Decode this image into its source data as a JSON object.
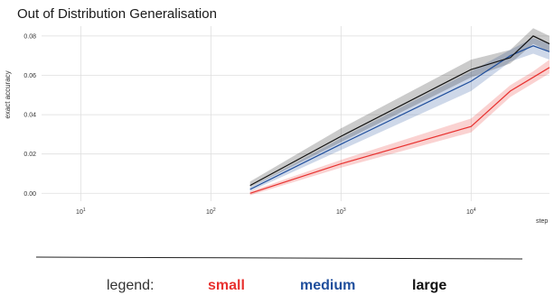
{
  "chart_data": {
    "type": "line",
    "title": "Out of Distribution Generalisation",
    "xlabel": "step",
    "ylabel": "exact accuracy",
    "xscale": "log",
    "xlim": [
      5,
      40000
    ],
    "ylim": [
      -0.004,
      0.085
    ],
    "x_ticks": [
      {
        "value": 10,
        "base": "10",
        "exp": "1"
      },
      {
        "value": 100,
        "base": "10",
        "exp": "2"
      },
      {
        "value": 1000,
        "base": "10",
        "exp": "3"
      },
      {
        "value": 10000,
        "base": "10",
        "exp": "4"
      }
    ],
    "y_ticks": [
      0.0,
      0.02,
      0.04,
      0.06,
      0.08
    ],
    "y_tick_labels": [
      "0.00",
      "0.02",
      "0.04",
      "0.06",
      "0.08"
    ],
    "grid": true,
    "legend": {
      "prefix": "legend:",
      "placement": "bottom"
    },
    "series": [
      {
        "name": "small",
        "color": "#e8312f",
        "x": [
          200,
          1000,
          10000,
          20000,
          30000,
          40000
        ],
        "y": [
          0.0,
          0.015,
          0.034,
          0.052,
          0.059,
          0.064
        ],
        "lower": [
          -0.001,
          0.013,
          0.031,
          0.049,
          0.056,
          0.061
        ],
        "upper": [
          0.001,
          0.017,
          0.038,
          0.055,
          0.062,
          0.068
        ]
      },
      {
        "name": "medium",
        "color": "#1f4e9c",
        "x": [
          200,
          1000,
          10000,
          20000,
          30000,
          40000
        ],
        "y": [
          0.002,
          0.025,
          0.057,
          0.07,
          0.075,
          0.072
        ],
        "lower": [
          0.001,
          0.022,
          0.052,
          0.067,
          0.071,
          0.068
        ],
        "upper": [
          0.003,
          0.028,
          0.062,
          0.073,
          0.079,
          0.076
        ]
      },
      {
        "name": "large",
        "color": "#111111",
        "x": [
          200,
          1000,
          10000,
          20000,
          30000,
          40000
        ],
        "y": [
          0.004,
          0.029,
          0.063,
          0.069,
          0.08,
          0.076
        ],
        "lower": [
          0.003,
          0.026,
          0.059,
          0.066,
          0.076,
          0.072
        ],
        "upper": [
          0.006,
          0.033,
          0.068,
          0.073,
          0.084,
          0.08
        ]
      }
    ]
  }
}
